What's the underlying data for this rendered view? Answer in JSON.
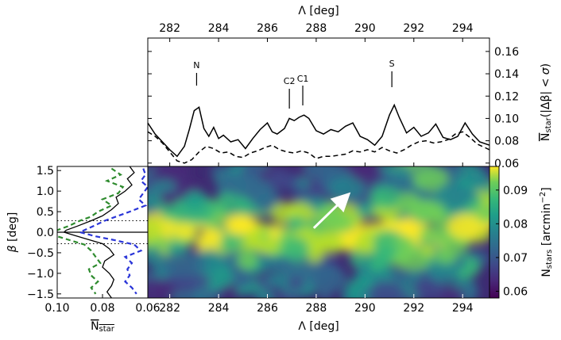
{
  "chart_data": [
    {
      "id": "top",
      "type": "line",
      "xlabel": "Λ [deg]",
      "ylabel": "N̄_star(|Δβ| < σ)",
      "xlim": [
        281.1,
        295.1
      ],
      "ylim": [
        0.057,
        0.172
      ],
      "xticks": [
        282,
        284,
        286,
        288,
        290,
        292,
        294
      ],
      "yticks": [
        0.06,
        0.08,
        0.1,
        0.12,
        0.14,
        0.16
      ],
      "ytick_labels": [
        "0.06",
        "0.08",
        "0.10",
        "0.12",
        "0.14",
        "0.16"
      ],
      "series": [
        {
          "style": "solid",
          "x": [
            281.1,
            281.4,
            281.7,
            282.0,
            282.3,
            282.6,
            282.8,
            283.0,
            283.2,
            283.4,
            283.6,
            283.8,
            284.0,
            284.2,
            284.5,
            284.8,
            285.1,
            285.4,
            285.7,
            286.0,
            286.2,
            286.4,
            286.7,
            286.9,
            287.1,
            287.3,
            287.5,
            287.7,
            288.0,
            288.3,
            288.6,
            288.9,
            289.2,
            289.5,
            289.8,
            290.1,
            290.4,
            290.7,
            291.0,
            291.2,
            291.4,
            291.7,
            292.0,
            292.3,
            292.6,
            292.9,
            293.2,
            293.5,
            293.8,
            294.1,
            294.4,
            294.7,
            295.1
          ],
          "y": [
            0.096,
            0.086,
            0.079,
            0.072,
            0.066,
            0.075,
            0.09,
            0.107,
            0.11,
            0.091,
            0.084,
            0.092,
            0.082,
            0.085,
            0.079,
            0.081,
            0.073,
            0.082,
            0.09,
            0.096,
            0.088,
            0.086,
            0.091,
            0.1,
            0.098,
            0.101,
            0.103,
            0.1,
            0.089,
            0.086,
            0.09,
            0.088,
            0.093,
            0.096,
            0.084,
            0.081,
            0.076,
            0.084,
            0.103,
            0.112,
            0.101,
            0.087,
            0.092,
            0.084,
            0.087,
            0.095,
            0.083,
            0.081,
            0.084,
            0.096,
            0.086,
            0.079,
            0.076
          ]
        },
        {
          "style": "dashed",
          "x": [
            281.1,
            281.4,
            281.7,
            282.0,
            282.3,
            282.6,
            282.9,
            283.2,
            283.5,
            283.8,
            284.1,
            284.4,
            284.7,
            285.0,
            285.3,
            285.6,
            285.9,
            286.2,
            286.5,
            286.8,
            287.1,
            287.4,
            287.7,
            288.0,
            288.3,
            288.6,
            288.9,
            289.2,
            289.5,
            289.8,
            290.1,
            290.4,
            290.7,
            291.0,
            291.3,
            291.6,
            291.9,
            292.2,
            292.5,
            292.8,
            293.1,
            293.4,
            293.7,
            294.0,
            294.3,
            294.6,
            295.1
          ],
          "y": [
            0.088,
            0.084,
            0.078,
            0.07,
            0.062,
            0.06,
            0.063,
            0.07,
            0.075,
            0.073,
            0.069,
            0.07,
            0.066,
            0.065,
            0.069,
            0.071,
            0.074,
            0.076,
            0.072,
            0.07,
            0.069,
            0.071,
            0.069,
            0.064,
            0.066,
            0.066,
            0.067,
            0.068,
            0.071,
            0.07,
            0.072,
            0.07,
            0.074,
            0.071,
            0.069,
            0.072,
            0.076,
            0.079,
            0.08,
            0.078,
            0.079,
            0.081,
            0.086,
            0.088,
            0.083,
            0.077,
            0.072
          ]
        }
      ],
      "annotations": [
        {
          "text": "N",
          "x": 283.1
        },
        {
          "text": "C2",
          "x": 286.9
        },
        {
          "text": "C1",
          "x": 287.45
        },
        {
          "text": "S",
          "x": 291.1
        }
      ]
    },
    {
      "id": "map",
      "type": "heatmap",
      "xlabel": "Λ [deg]",
      "xlim": [
        281.1,
        295.1
      ],
      "ylim": [
        -1.6,
        1.6
      ],
      "xticks": [
        282,
        284,
        286,
        288,
        290,
        292,
        294
      ],
      "colormap": "viridis",
      "colorbar": {
        "label": "N_stars [arcmin⁻²]",
        "range": [
          0.058,
          0.097
        ],
        "ticks": [
          0.06,
          0.07,
          0.08,
          0.09
        ],
        "tick_labels": [
          "0.06",
          "0.07",
          "0.08",
          "0.09"
        ]
      },
      "arrow": {
        "from": [
          287.9,
          0.1
        ],
        "to": [
          289.2,
          0.85
        ],
        "color": "#ffffff"
      }
    },
    {
      "id": "side",
      "type": "line",
      "xlabel": "N̄_star",
      "ylabel": "β [deg]",
      "xlim": [
        0.1,
        0.06
      ],
      "ylim": [
        -1.6,
        1.6
      ],
      "xticks": [
        0.1,
        0.08,
        0.06
      ],
      "xtick_labels": [
        "0.10",
        "0.08",
        "0.06"
      ],
      "yticks": [
        1.5,
        1.0,
        0.5,
        0.0,
        -0.5,
        -1.0,
        -1.5
      ],
      "ytick_labels": [
        "1.5",
        "1.0",
        "0.5",
        "0.0",
        "−0.5",
        "−1.0",
        "−1.5"
      ],
      "hlines": [
        {
          "y": 0.28,
          "style": "dotted"
        },
        {
          "y": -0.28,
          "style": "dotted"
        },
        {
          "y": 0.0,
          "style": "solid"
        }
      ],
      "series": [
        {
          "style": "solid",
          "color": "#000000",
          "y": [
            1.6,
            1.45,
            1.3,
            1.15,
            1.0,
            0.85,
            0.7,
            0.55,
            0.4,
            0.28,
            0.15,
            0.05,
            0.0,
            -0.05,
            -0.15,
            -0.28,
            -0.4,
            -0.55,
            -0.7,
            -0.85,
            -1.0,
            -1.15,
            -1.3,
            -1.45,
            -1.6
          ],
          "x": [
            0.068,
            0.066,
            0.069,
            0.067,
            0.07,
            0.074,
            0.073,
            0.076,
            0.08,
            0.085,
            0.091,
            0.096,
            0.097,
            0.094,
            0.088,
            0.08,
            0.077,
            0.075,
            0.079,
            0.08,
            0.077,
            0.075,
            0.076,
            0.078,
            0.076
          ]
        },
        {
          "style": "dashed",
          "color": "#2e8b2e",
          "y": [
            1.55,
            1.4,
            1.25,
            1.1,
            0.95,
            0.8,
            0.65,
            0.5,
            0.38,
            0.28,
            0.15,
            0.05,
            0.0,
            -0.1,
            -0.2,
            -0.3,
            -0.45,
            -0.6,
            -0.75,
            -0.9,
            -1.05,
            -1.2,
            -1.35,
            -1.5
          ],
          "x": [
            0.076,
            0.072,
            0.078,
            0.071,
            0.073,
            0.08,
            0.076,
            0.082,
            0.085,
            0.09,
            0.095,
            0.1,
            0.104,
            0.1,
            0.094,
            0.088,
            0.085,
            0.083,
            0.081,
            0.086,
            0.085,
            0.082,
            0.085,
            0.083
          ]
        },
        {
          "style": "dashed",
          "color": "#2a35d8",
          "y": [
            1.55,
            1.4,
            1.25,
            1.1,
            0.95,
            0.8,
            0.65,
            0.5,
            0.38,
            0.28,
            0.15,
            0.05,
            0.0,
            -0.1,
            -0.2,
            -0.3,
            -0.45,
            -0.6,
            -0.75,
            -0.9,
            -1.05,
            -1.2,
            -1.35,
            -1.5
          ],
          "x": [
            0.062,
            0.061,
            0.063,
            0.06,
            0.062,
            0.064,
            0.061,
            0.068,
            0.074,
            0.079,
            0.084,
            0.088,
            0.09,
            0.083,
            0.074,
            0.066,
            0.063,
            0.07,
            0.067,
            0.069,
            0.068,
            0.07,
            0.067,
            0.065
          ]
        }
      ]
    }
  ]
}
